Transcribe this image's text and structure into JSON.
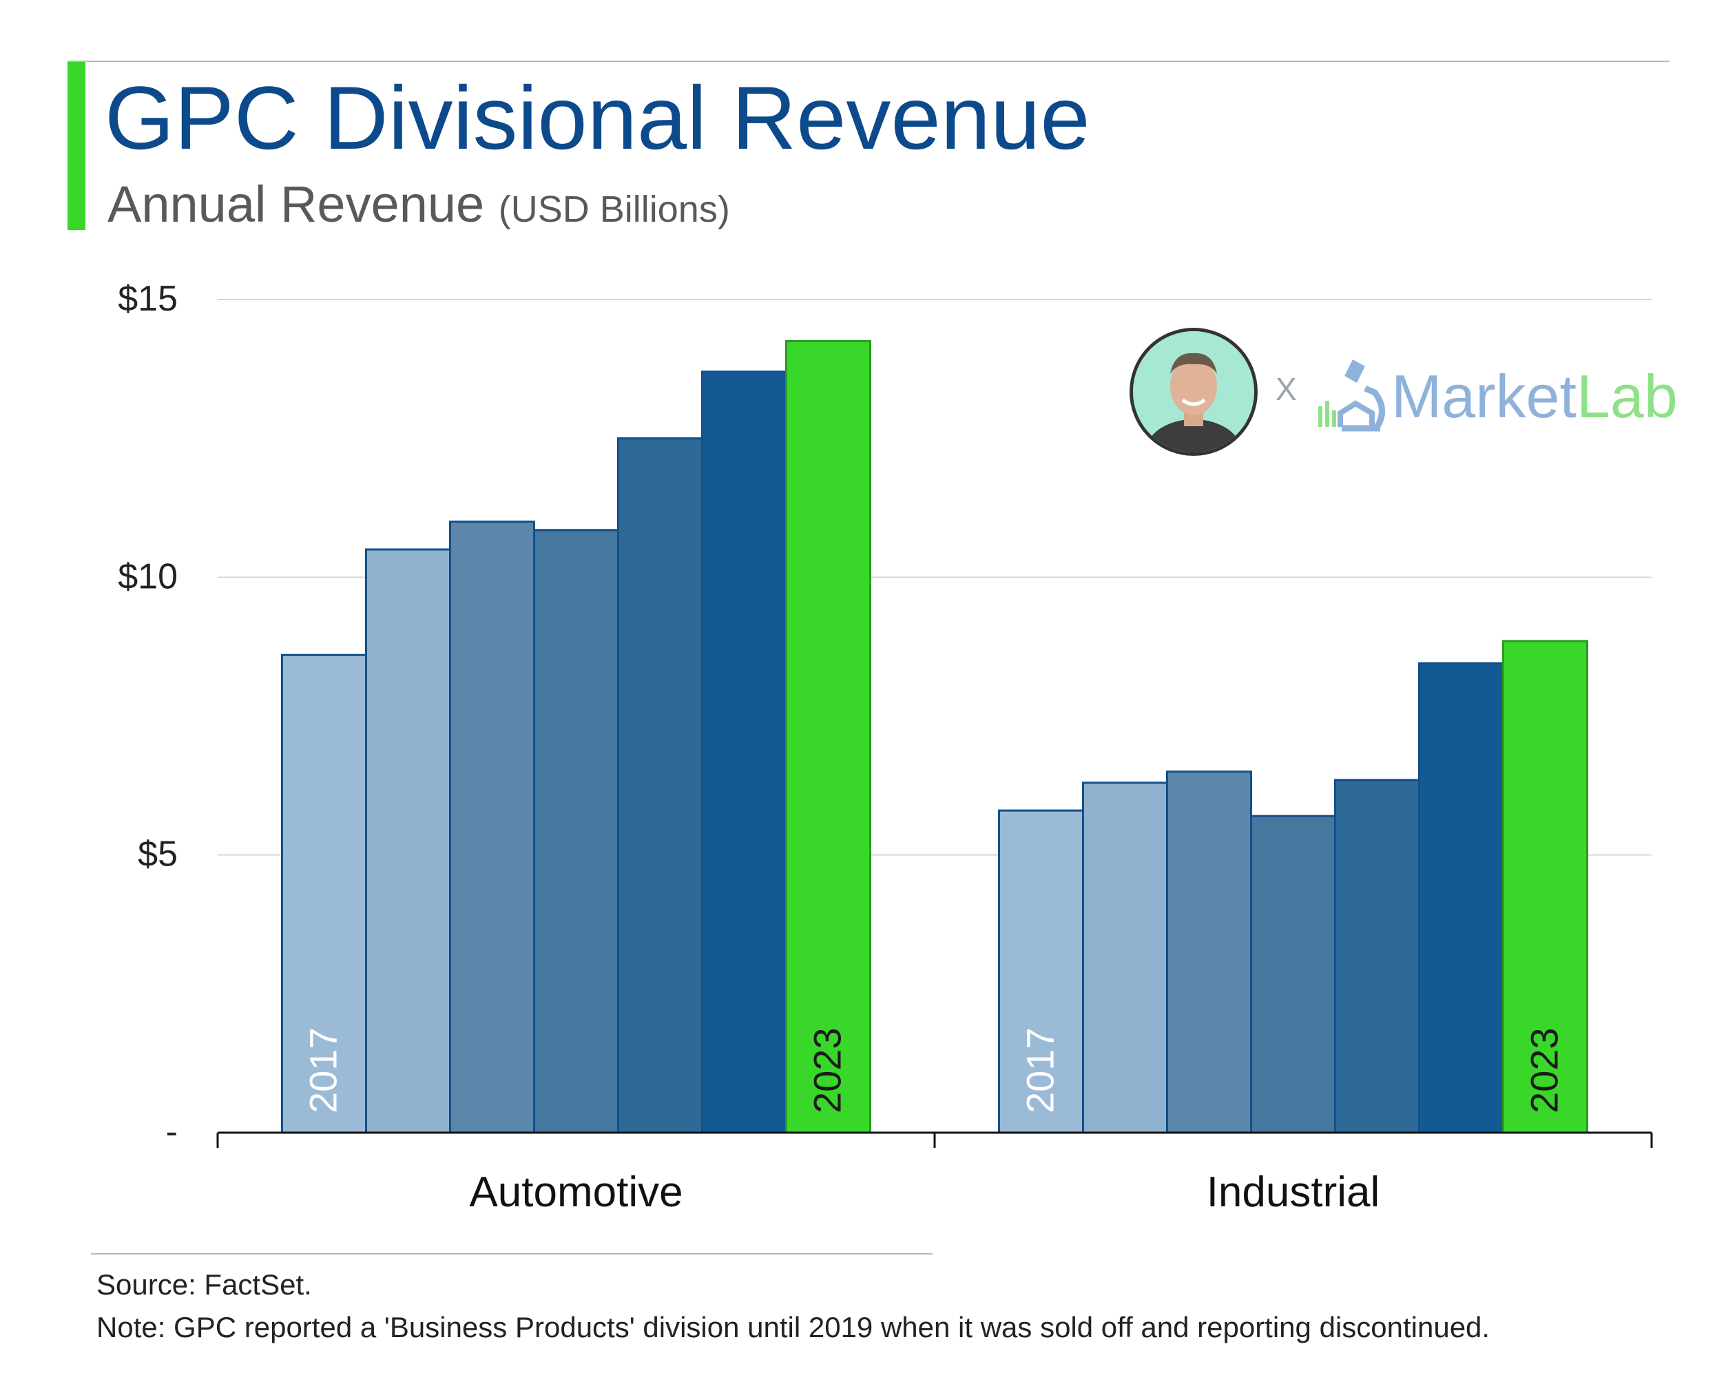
{
  "header": {
    "title": "GPC Divisional Revenue",
    "subtitle": "Annual Revenue",
    "subtitle_unit": "(USD Billions)"
  },
  "colors": {
    "accent": "#3ad72b",
    "title": "#0d4a8c",
    "year_shades": [
      "#9bbad6",
      "#8fb2ce",
      "#5c87ab",
      "#46779f",
      "#2e6a98",
      "#135a94",
      "#3ad72b"
    ],
    "bar_outline": "#124f8a",
    "highlight_outline": "#2a9a22"
  },
  "logo": {
    "separator": "X",
    "brand_part1": "Market",
    "brand_part2": "Lab",
    "icons": [
      "avatar-photo",
      "microscope-icon"
    ]
  },
  "chart_data": {
    "type": "bar",
    "categories": [
      "Automotive",
      "Industrial"
    ],
    "year_labels": [
      "2017",
      "2023"
    ],
    "series": [
      {
        "values": [
          8.6,
          5.8
        ]
      },
      {
        "values": [
          10.5,
          6.3
        ]
      },
      {
        "values": [
          11.0,
          6.5
        ]
      },
      {
        "values": [
          10.85,
          5.7
        ]
      },
      {
        "values": [
          12.5,
          6.35
        ]
      },
      {
        "values": [
          13.7,
          8.45
        ]
      },
      {
        "values": [
          14.25,
          8.85
        ]
      }
    ],
    "ylim": [
      0,
      15
    ],
    "yticks": [
      0,
      5,
      10,
      15
    ],
    "ytick_labels": [
      "-",
      "$5",
      "$10",
      "$15"
    ],
    "grid": true,
    "xlabel": "",
    "ylabel": ""
  },
  "footer": {
    "source": "Source: FactSet.",
    "note": "Note: GPC reported a 'Business Products' division until 2019 when it was sold off and reporting discontinued."
  }
}
